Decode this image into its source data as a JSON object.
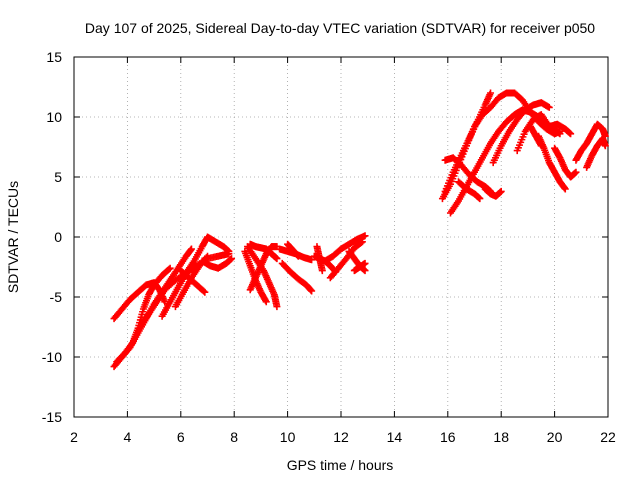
{
  "chart_data": {
    "type": "scatter",
    "title": "Day 107 of 2025, Sidereal Day-to-day VTEC variation (SDTVAR) for receiver p050",
    "xlabel": "GPS time / hours",
    "ylabel": "SDTVAR / TECUs",
    "xlim": [
      2,
      22
    ],
    "ylim": [
      -15,
      15
    ],
    "xticks": [
      "2",
      "4",
      "6",
      "8",
      "10",
      "12",
      "14",
      "16",
      "18",
      "20",
      "22"
    ],
    "yticks": [
      "-15",
      "-10",
      "-5",
      "0",
      "5",
      "10",
      "15"
    ],
    "grid": true,
    "marker": "+",
    "series": [
      {
        "color": "#ff0000",
        "tracks": [
          [
            [
              3.5,
              -10.8
            ],
            [
              3.8,
              -10.0
            ],
            [
              4.1,
              -9.2
            ],
            [
              4.4,
              -8.0
            ],
            [
              4.7,
              -6.8
            ],
            [
              5.0,
              -5.6
            ],
            [
              5.3,
              -4.6
            ],
            [
              5.6,
              -3.6
            ],
            [
              5.9,
              -2.6
            ],
            [
              6.2,
              -1.6
            ],
            [
              6.4,
              -1.0
            ]
          ],
          [
            [
              3.6,
              -10.4
            ],
            [
              3.9,
              -9.7
            ],
            [
              4.2,
              -8.8
            ],
            [
              4.4,
              -7.6
            ],
            [
              4.6,
              -6.0
            ],
            [
              4.8,
              -4.8
            ],
            [
              5.0,
              -4.0
            ],
            [
              5.3,
              -3.2
            ],
            [
              5.6,
              -2.6
            ]
          ],
          [
            [
              3.5,
              -6.8
            ],
            [
              3.8,
              -6.0
            ],
            [
              4.1,
              -5.2
            ],
            [
              4.4,
              -4.6
            ],
            [
              4.7,
              -4.0
            ],
            [
              5.0,
              -3.8
            ],
            [
              5.2,
              -4.4
            ],
            [
              5.4,
              -5.4
            ]
          ],
          [
            [
              4.5,
              -7.4
            ],
            [
              4.8,
              -6.4
            ],
            [
              5.1,
              -5.4
            ],
            [
              5.4,
              -4.4
            ],
            [
              5.8,
              -3.6
            ],
            [
              6.2,
              -3.0
            ],
            [
              6.6,
              -2.4
            ],
            [
              7.0,
              -1.8
            ],
            [
              7.4,
              -1.6
            ],
            [
              7.8,
              -1.4
            ]
          ],
          [
            [
              5.3,
              -6.6
            ],
            [
              5.6,
              -5.4
            ],
            [
              5.9,
              -4.2
            ],
            [
              6.2,
              -3.0
            ],
            [
              6.5,
              -2.0
            ],
            [
              6.8,
              -0.8
            ],
            [
              7.0,
              0.0
            ],
            [
              7.3,
              -0.4
            ],
            [
              7.6,
              -0.8
            ],
            [
              7.8,
              -1.2
            ]
          ],
          [
            [
              6.0,
              -2.8
            ],
            [
              6.3,
              -3.4
            ],
            [
              6.6,
              -4.0
            ],
            [
              6.9,
              -4.6
            ]
          ],
          [
            [
              6.8,
              -2.0
            ],
            [
              7.1,
              -2.4
            ],
            [
              7.4,
              -2.6
            ],
            [
              7.7,
              -2.2
            ],
            [
              7.9,
              -1.8
            ]
          ],
          [
            [
              5.8,
              -5.8
            ],
            [
              6.1,
              -4.6
            ],
            [
              6.4,
              -3.4
            ],
            [
              6.7,
              -2.4
            ],
            [
              7.0,
              -1.6
            ]
          ],
          [
            [
              8.5,
              -0.8
            ],
            [
              8.8,
              -1.8
            ],
            [
              9.1,
              -2.8
            ],
            [
              9.3,
              -3.8
            ],
            [
              9.5,
              -4.8
            ],
            [
              9.6,
              -5.8
            ]
          ],
          [
            [
              8.6,
              -0.6
            ],
            [
              8.8,
              -0.8
            ],
            [
              9.0,
              -0.9
            ],
            [
              9.2,
              -1.0
            ],
            [
              9.4,
              -1.4
            ],
            [
              9.6,
              -1.8
            ]
          ],
          [
            [
              8.4,
              -1.2
            ],
            [
              8.6,
              -2.4
            ],
            [
              8.8,
              -3.6
            ],
            [
              9.0,
              -4.6
            ],
            [
              9.2,
              -5.4
            ]
          ],
          [
            [
              8.6,
              -4.4
            ],
            [
              8.8,
              -3.4
            ],
            [
              9.0,
              -2.4
            ],
            [
              9.2,
              -1.4
            ],
            [
              9.4,
              -0.8
            ],
            [
              9.6,
              -0.8
            ]
          ],
          [
            [
              9.8,
              -2.2
            ],
            [
              10.1,
              -2.9
            ],
            [
              10.4,
              -3.5
            ],
            [
              10.7,
              -4.0
            ],
            [
              10.9,
              -4.5
            ]
          ],
          [
            [
              9.7,
              -1.0
            ],
            [
              10.0,
              -1.2
            ],
            [
              10.3,
              -1.4
            ],
            [
              10.6,
              -1.7
            ],
            [
              10.9,
              -1.9
            ]
          ],
          [
            [
              10.0,
              -0.6
            ],
            [
              10.2,
              -1.1
            ],
            [
              10.4,
              -1.6
            ]
          ],
          [
            [
              11.0,
              -1.6
            ],
            [
              11.2,
              -1.8
            ],
            [
              11.4,
              -2.0
            ],
            [
              11.6,
              -2.4
            ],
            [
              11.8,
              -2.9
            ]
          ],
          [
            [
              11.1,
              -0.8
            ],
            [
              11.2,
              -1.8
            ],
            [
              11.3,
              -2.8
            ]
          ],
          [
            [
              11.4,
              -2.0
            ],
            [
              11.7,
              -1.6
            ],
            [
              12.0,
              -1.0
            ],
            [
              12.3,
              -0.6
            ],
            [
              12.6,
              -0.2
            ],
            [
              12.9,
              0.1
            ]
          ],
          [
            [
              11.6,
              -3.4
            ],
            [
              11.9,
              -2.6
            ],
            [
              12.2,
              -1.8
            ],
            [
              12.5,
              -0.9
            ],
            [
              12.8,
              -0.4
            ]
          ],
          [
            [
              12.3,
              -1.2
            ],
            [
              12.5,
              -1.8
            ],
            [
              12.7,
              -2.4
            ],
            [
              12.9,
              -2.8
            ]
          ],
          [
            [
              12.5,
              -2.8
            ],
            [
              12.7,
              -2.5
            ],
            [
              12.9,
              -2.2
            ]
          ],
          [
            [
              15.9,
              3.8
            ],
            [
              16.2,
              5.4
            ],
            [
              16.5,
              6.8
            ],
            [
              16.8,
              8.2
            ],
            [
              17.1,
              9.6
            ],
            [
              17.4,
              11.0
            ],
            [
              17.6,
              12.0
            ]
          ],
          [
            [
              15.8,
              3.2
            ],
            [
              16.1,
              4.4
            ],
            [
              16.4,
              6.0
            ],
            [
              16.7,
              7.6
            ],
            [
              17.0,
              9.2
            ],
            [
              17.3,
              10.2
            ],
            [
              17.6,
              10.8
            ],
            [
              17.9,
              11.6
            ],
            [
              18.2,
              12.0
            ],
            [
              18.5,
              12.0
            ],
            [
              18.8,
              11.4
            ],
            [
              19.1,
              10.4
            ],
            [
              19.4,
              9.6
            ],
            [
              19.7,
              9.0
            ],
            [
              20.0,
              8.6
            ],
            [
              20.2,
              8.8
            ]
          ],
          [
            [
              16.1,
              2.0
            ],
            [
              16.4,
              3.0
            ],
            [
              16.7,
              4.2
            ],
            [
              17.0,
              5.4
            ],
            [
              17.3,
              6.6
            ],
            [
              17.6,
              7.8
            ],
            [
              17.9,
              8.8
            ],
            [
              18.2,
              9.6
            ],
            [
              18.5,
              10.2
            ],
            [
              18.8,
              10.6
            ],
            [
              19.1,
              10.4
            ],
            [
              19.4,
              10.0
            ],
            [
              19.7,
              9.4
            ],
            [
              20.0,
              9.0
            ],
            [
              20.2,
              8.6
            ]
          ],
          [
            [
              15.9,
              6.4
            ],
            [
              16.2,
              6.6
            ],
            [
              16.5,
              6.0
            ],
            [
              16.8,
              5.2
            ],
            [
              17.1,
              4.6
            ],
            [
              17.4,
              4.2
            ],
            [
              17.6,
              3.8
            ]
          ],
          [
            [
              16.4,
              4.6
            ],
            [
              16.7,
              4.0
            ],
            [
              17.0,
              3.6
            ],
            [
              17.2,
              3.2
            ]
          ],
          [
            [
              17.7,
              6.2
            ],
            [
              18.0,
              7.6
            ],
            [
              18.3,
              8.8
            ],
            [
              18.6,
              9.8
            ],
            [
              18.9,
              10.6
            ],
            [
              19.2,
              11.0
            ],
            [
              19.5,
              11.2
            ],
            [
              19.8,
              10.8
            ]
          ],
          [
            [
              17.4,
              4.0
            ],
            [
              17.6,
              3.6
            ],
            [
              17.8,
              3.4
            ],
            [
              18.0,
              3.8
            ]
          ],
          [
            [
              18.6,
              7.2
            ],
            [
              18.9,
              8.8
            ],
            [
              19.2,
              9.8
            ],
            [
              19.5,
              10.2
            ],
            [
              19.8,
              9.2
            ],
            [
              20.1,
              9.4
            ],
            [
              20.4,
              9.0
            ],
            [
              20.6,
              8.6
            ]
          ],
          [
            [
              19.4,
              8.4
            ],
            [
              19.6,
              7.4
            ],
            [
              19.8,
              6.2
            ],
            [
              20.0,
              5.4
            ],
            [
              20.2,
              4.6
            ],
            [
              20.4,
              4.0
            ]
          ],
          [
            [
              20.0,
              7.4
            ],
            [
              20.2,
              6.6
            ],
            [
              20.4,
              5.6
            ],
            [
              20.6,
              5.0
            ],
            [
              20.8,
              5.4
            ]
          ],
          [
            [
              19.1,
              9.2
            ],
            [
              19.3,
              8.4
            ],
            [
              19.5,
              7.6
            ]
          ],
          [
            [
              20.8,
              6.4
            ],
            [
              21.0,
              7.2
            ],
            [
              21.2,
              7.8
            ],
            [
              21.4,
              8.6
            ],
            [
              21.6,
              9.4
            ],
            [
              21.8,
              9.0
            ],
            [
              21.9,
              8.4
            ]
          ],
          [
            [
              21.2,
              5.8
            ],
            [
              21.4,
              6.8
            ],
            [
              21.6,
              7.6
            ],
            [
              21.8,
              8.2
            ],
            [
              21.9,
              7.6
            ]
          ]
        ]
      }
    ]
  }
}
